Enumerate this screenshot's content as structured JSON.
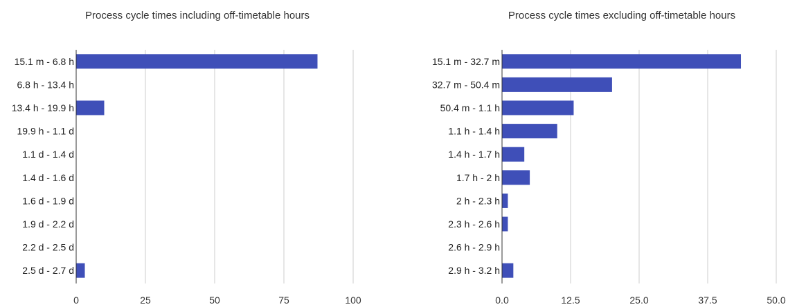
{
  "chart_data": [
    {
      "type": "bar",
      "orientation": "horizontal",
      "title": "Process cycle times including off-timetable hours",
      "categories": [
        "15.1 m - 6.8 h",
        "6.8 h - 13.4 h",
        "13.4 h - 19.9 h",
        "19.9 h - 1.1 d",
        "1.1 d - 1.4 d",
        "1.4 d - 1.6 d",
        "1.6 d - 1.9 d",
        "1.9 d - 2.2 d",
        "2.2 d - 2.5 d",
        "2.5 d - 2.7 d"
      ],
      "values": [
        87,
        0,
        10,
        0,
        0,
        0,
        0,
        0,
        0,
        3
      ],
      "xlim": [
        0,
        100
      ],
      "x_ticks": [
        "0",
        "25",
        "50",
        "75",
        "100"
      ],
      "xlabel": "",
      "ylabel": "",
      "grid": true,
      "bar_color": "#3f4fb8"
    },
    {
      "type": "bar",
      "orientation": "horizontal",
      "title": "Process cycle times excluding off-timetable hours",
      "categories": [
        "15.1 m - 32.7 m",
        "32.7 m - 50.4 m",
        "50.4 m - 1.1 h",
        "1.1 h - 1.4 h",
        "1.4 h - 1.7 h",
        "1.7 h - 2 h",
        "2 h - 2.3 h",
        "2.3 h - 2.6 h",
        "2.6 h - 2.9 h",
        "2.9 h - 3.2 h"
      ],
      "values": [
        43.5,
        20,
        13,
        10,
        4,
        5,
        1,
        1,
        0,
        2
      ],
      "xlim": [
        0,
        50
      ],
      "x_ticks": [
        "0.0",
        "12.5",
        "25.0",
        "37.5",
        "50.0"
      ],
      "xlabel": "",
      "ylabel": "",
      "grid": true,
      "bar_color": "#3f4fb8"
    }
  ]
}
